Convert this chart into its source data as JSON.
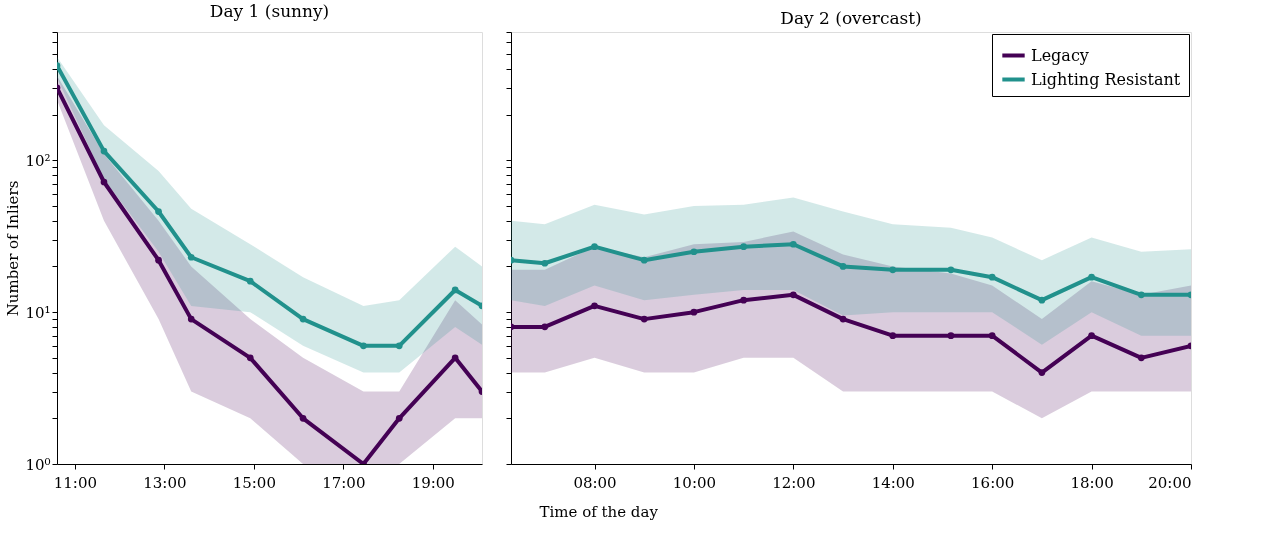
{
  "chart_data": [
    {
      "type": "line",
      "title": "Day 1 (sunny)",
      "xlabel": "Time of the day",
      "ylabel": "Number of Inliers",
      "log": "y",
      "grid": false,
      "legend": false,
      "marker": "circle",
      "line_style": "solid",
      "x": [
        10.6,
        11.65,
        12.87,
        13.6,
        14.92,
        16.1,
        17.45,
        18.25,
        19.5,
        20.1
      ],
      "xlim": [
        10.6,
        20.1
      ],
      "xticks": [
        {
          "value": 11,
          "label": "11:00"
        },
        {
          "value": 13,
          "label": "13:00"
        },
        {
          "value": 15,
          "label": "15:00"
        },
        {
          "value": 17,
          "label": "17:00"
        },
        {
          "value": 19,
          "label": "19:00"
        }
      ],
      "ylim": [
        1,
        700
      ],
      "yticks": [
        {
          "value": 1,
          "label": "10⁰"
        },
        {
          "value": 2,
          "label": null
        },
        {
          "value": 3,
          "label": null
        },
        {
          "value": 4,
          "label": null
        },
        {
          "value": 5,
          "label": null
        },
        {
          "value": 6,
          "label": null
        },
        {
          "value": 7,
          "label": null
        },
        {
          "value": 8,
          "label": null
        },
        {
          "value": 9,
          "label": null
        },
        {
          "value": 10,
          "label": "10¹"
        },
        {
          "value": 20,
          "label": null
        },
        {
          "value": 30,
          "label": null
        },
        {
          "value": 40,
          "label": null
        },
        {
          "value": 50,
          "label": null
        },
        {
          "value": 60,
          "label": null
        },
        {
          "value": 70,
          "label": null
        },
        {
          "value": 80,
          "label": null
        },
        {
          "value": 90,
          "label": null
        },
        {
          "value": 100,
          "label": "10²"
        },
        {
          "value": 200,
          "label": null
        },
        {
          "value": 300,
          "label": null
        },
        {
          "value": 400,
          "label": null
        },
        {
          "value": 500,
          "label": null
        },
        {
          "value": 600,
          "label": null
        },
        {
          "value": 700,
          "label": null
        }
      ],
      "series": [
        {
          "color": "#440154",
          "values": [
            300,
            72,
            22,
            9,
            5,
            2,
            1,
            2,
            5,
            3
          ],
          "lower": [
            250,
            40,
            9,
            3,
            2,
            1,
            1,
            1,
            2,
            2
          ],
          "upper": [
            360,
            110,
            40,
            20,
            9,
            5,
            3,
            3,
            12,
            8.3
          ]
        },
        {
          "color": "#21918c",
          "values": [
            420,
            115,
            46,
            23,
            16,
            9,
            6,
            6,
            14,
            11
          ],
          "lower": [
            350,
            75,
            25,
            11,
            10,
            6,
            4,
            4,
            8,
            6.1
          ],
          "upper": [
            480,
            170,
            85,
            48,
            28,
            17,
            11,
            12,
            27,
            20
          ]
        }
      ]
    },
    {
      "type": "line",
      "title": "Day 2 (overcast)",
      "log": "y",
      "grid": false,
      "legend": "top right",
      "marker": "circle",
      "line_style": "solid",
      "tick_labels": "x",
      "x": [
        6.32,
        7,
        8,
        9,
        10,
        11,
        12,
        13,
        14,
        15.17,
        16,
        17,
        18,
        19,
        20
      ],
      "xlim": [
        6.32,
        20
      ],
      "xticks": [
        {
          "value": 8,
          "label": "08:00"
        },
        {
          "value": 10,
          "label": "10:00"
        },
        {
          "value": 12,
          "label": "12:00"
        },
        {
          "value": 14,
          "label": "14:00"
        },
        {
          "value": 16,
          "label": "16:00"
        },
        {
          "value": 18,
          "label": "18:00"
        },
        {
          "value": 20,
          "label": "20:00"
        }
      ],
      "ylim": [
        1,
        700
      ],
      "yticks": [
        1,
        2,
        3,
        4,
        5,
        6,
        7,
        8,
        9,
        10,
        20,
        30,
        40,
        50,
        60,
        70,
        80,
        90,
        100,
        200,
        300,
        400,
        500,
        600,
        700
      ],
      "series": [
        {
          "name": "Legacy",
          "color": "#440154",
          "values": [
            8,
            8,
            11,
            9,
            10,
            12,
            13,
            9,
            7,
            7,
            7,
            4,
            7,
            5,
            6
          ],
          "lower": [
            4,
            4,
            5,
            4,
            4,
            5,
            5,
            3,
            3,
            3,
            3,
            2,
            3,
            3,
            3
          ],
          "upper": [
            19,
            19,
            27,
            23,
            28,
            29,
            34,
            24,
            20,
            18,
            15,
            9,
            16,
            13,
            15
          ]
        },
        {
          "name": "Lighting Resistant",
          "color": "#21918c",
          "values": [
            22,
            21,
            27,
            22,
            25,
            27,
            28,
            20,
            19,
            19,
            17,
            12,
            17,
            13,
            13
          ],
          "lower": [
            12,
            11,
            15,
            12,
            13,
            14,
            14,
            9.5,
            10,
            10,
            10,
            6.1,
            10,
            7,
            7
          ],
          "upper": [
            40,
            38,
            51,
            44,
            50,
            51,
            57,
            46,
            38,
            36,
            31,
            22,
            31,
            25,
            26
          ]
        }
      ]
    }
  ]
}
